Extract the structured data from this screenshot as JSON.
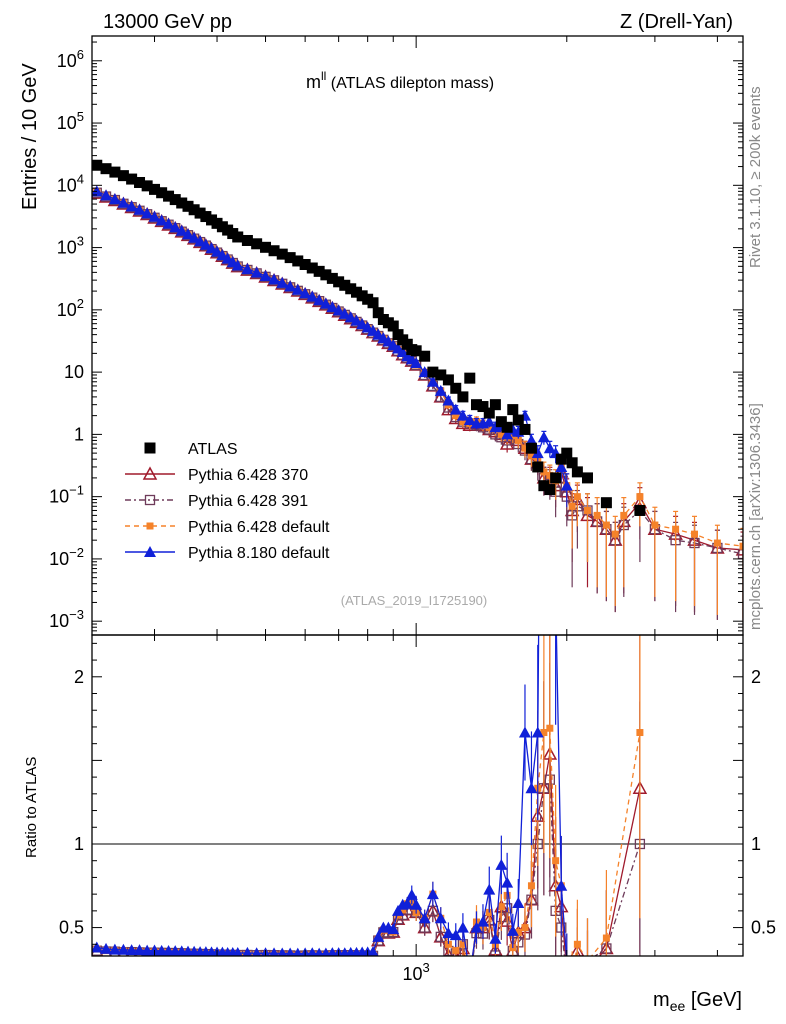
{
  "header": {
    "energy_label": "13000 GeV pp",
    "process_label": "Z (Drell-Yan)"
  },
  "title": {
    "main": "m",
    "sup": "ll",
    "suffix": " (ATLAS dilepton mass)"
  },
  "side_text": {
    "rivet": "Rivet 3.1.10, ≥ 200k events",
    "source": "mcplots.cern.ch [arXiv:1306.3436]"
  },
  "analysis_label": "(ATLAS_2019_I1725190)",
  "axis_labels": {
    "y_main": "Entries / 10 GeV",
    "y_ratio": "Ratio to ATLAS",
    "x_base": "m",
    "x_sub": "ee",
    "x_unit": " [GeV]"
  },
  "ticks": {
    "main": [
      {
        "v": 1000000.0,
        "b": "10",
        "e": "6"
      },
      {
        "v": 100000.0,
        "b": "10",
        "e": "5"
      },
      {
        "v": 10000.0,
        "b": "10",
        "e": "4"
      },
      {
        "v": 1000.0,
        "b": "10",
        "e": "3"
      },
      {
        "v": 100.0,
        "b": "10",
        "e": "2"
      },
      {
        "v": 10,
        "b": "10",
        "e": ""
      },
      {
        "v": 1,
        "b": "1",
        "e": ""
      },
      {
        "v": 0.1,
        "b": "10",
        "e": "−1"
      },
      {
        "v": 0.01,
        "b": "10",
        "e": "−2"
      },
      {
        "v": 0.001,
        "b": "10",
        "e": "−3"
      }
    ],
    "ratio": [
      {
        "v": 2,
        "t": "2"
      },
      {
        "v": 1,
        "t": "1"
      },
      {
        "v": 0.5,
        "t": "0.5"
      }
    ],
    "x": [
      {
        "v": 1000,
        "b": "10",
        "e": "3"
      }
    ]
  },
  "legend": [
    {
      "key": "atlas",
      "label": "ATLAS",
      "color": "#000000"
    },
    {
      "key": "p370",
      "label": "Pythia 6.428 370",
      "color": "#a01a2c"
    },
    {
      "key": "p391",
      "label": "Pythia 6.428 391",
      "color": "#6e3b5a"
    },
    {
      "key": "pdef",
      "label": "Pythia 6.428 default",
      "color": "#f5822a"
    },
    {
      "key": "p8",
      "label": "Pythia 8.180 default",
      "color": "#1020d8"
    }
  ],
  "chart_data": {
    "type": "line",
    "title": "m^ll (ATLAS dilepton mass)",
    "xlabel": "m_ee [GeV]",
    "ylabel": "Entries / 10 GeV",
    "xscale": "log",
    "yscale": "log",
    "xlim": [
      225,
      4500
    ],
    "ylim": [
      0.0006,
      2500000
    ],
    "ratio_ylim": [
      0.33,
      2.25
    ],
    "x": [
      230,
      240,
      250,
      260,
      270,
      280,
      290,
      300,
      310,
      320,
      330,
      340,
      350,
      360,
      370,
      380,
      390,
      400,
      410,
      420,
      430,
      440,
      460,
      480,
      500,
      520,
      540,
      560,
      580,
      600,
      620,
      640,
      660,
      680,
      700,
      720,
      740,
      760,
      780,
      800,
      820,
      840,
      860,
      880,
      900,
      920,
      940,
      960,
      980,
      1000,
      1040,
      1080,
      1120,
      1160,
      1200,
      1240,
      1280,
      1320,
      1360,
      1400,
      1440,
      1480,
      1520,
      1560,
      1600,
      1650,
      1700,
      1750,
      1800,
      1850,
      1900,
      1950,
      2000,
      2050,
      2100,
      2200,
      2300,
      2400,
      2500,
      2600,
      2800,
      3000,
      3300,
      3600,
      4000,
      4500
    ],
    "series": [
      {
        "name": "ATLAS",
        "values": [
          21000,
          18500,
          16300,
          14300,
          12600,
          11100,
          9800,
          8600,
          7600,
          6700,
          5900,
          5200,
          4600,
          4050,
          3580,
          3150,
          2780,
          2450,
          2160,
          1910,
          1680,
          1480,
          1300,
          1150,
          1010,
          890,
          785,
          690,
          610,
          535,
          470,
          415,
          365,
          320,
          282,
          248,
          218,
          192,
          168,
          148,
          130,
          90,
          70,
          62,
          55,
          40,
          33,
          28,
          23,
          22,
          18,
          10,
          9,
          7.5,
          5.5,
          4,
          8,
          3,
          2.8,
          2.2,
          3.0,
          1.6,
          1.3,
          2.5,
          1.7,
          1.2,
          0.6,
          0.3,
          0.15,
          0.13,
          0.2,
          0.4,
          0.5,
          0.35,
          0.25,
          0.2,
          null,
          0.08,
          null,
          null,
          0.06,
          null,
          null,
          null,
          null,
          null
        ]
      },
      {
        "name": "Pythia 6.428 370",
        "values": [
          7500,
          6500,
          5700,
          5000,
          4400,
          3870,
          3400,
          2990,
          2630,
          2310,
          2030,
          1790,
          1570,
          1380,
          1215,
          1070,
          940,
          825,
          725,
          640,
          562,
          494,
          435,
          383,
          337,
          296,
          260,
          229,
          201,
          177,
          156,
          137,
          120,
          106,
          93,
          82,
          72,
          63,
          56,
          49,
          43,
          38,
          33,
          29,
          26,
          22,
          19,
          17,
          15,
          13,
          9,
          6,
          4,
          2.5,
          1.8,
          1.5,
          1.4,
          1.5,
          1.4,
          1.2,
          1.1,
          1.0,
          0.7,
          0.9,
          0.8,
          0.6,
          0.4,
          0.35,
          0.2,
          0.2,
          0.15,
          0.25,
          0.12,
          0.06,
          0.09,
          0.05,
          0.04,
          0.03,
          0.02,
          0.04,
          0.08,
          0.03,
          0.025,
          0.02,
          0.015,
          0.014
        ]
      },
      {
        "name": "Pythia 6.428 391",
        "values": [
          7600,
          6600,
          5800,
          5050,
          4450,
          3900,
          3430,
          3010,
          2650,
          2330,
          2050,
          1800,
          1580,
          1390,
          1225,
          1075,
          945,
          830,
          730,
          643,
          565,
          497,
          437,
          385,
          339,
          298,
          262,
          230,
          202,
          178,
          157,
          138,
          121,
          107,
          94,
          83,
          73,
          64,
          56,
          49,
          43,
          38,
          33,
          29,
          26,
          22,
          19,
          17,
          15,
          13,
          9,
          6,
          4,
          2.7,
          1.9,
          1.6,
          1.5,
          1.4,
          1.3,
          1.2,
          1.0,
          0.9,
          0.8,
          0.9,
          0.7,
          0.55,
          0.4,
          0.3,
          0.2,
          0.18,
          0.12,
          0.2,
          0.1,
          0.05,
          0.07,
          0.06,
          0.04,
          0.03,
          0.02,
          0.035,
          0.06,
          0.03,
          0.02,
          0.018,
          0.015,
          0.012
        ]
      },
      {
        "name": "Pythia 6.428 default",
        "values": [
          7800,
          6700,
          5900,
          5150,
          4500,
          3950,
          3470,
          3050,
          2680,
          2350,
          2070,
          1820,
          1600,
          1405,
          1235,
          1085,
          955,
          840,
          737,
          648,
          570,
          501,
          441,
          388,
          341,
          300,
          264,
          232,
          204,
          180,
          158,
          139,
          122,
          108,
          95,
          83,
          73,
          64,
          57,
          50,
          44,
          39,
          34,
          30,
          26,
          23,
          20,
          18,
          15,
          13,
          10,
          7,
          5,
          3,
          2,
          1.6,
          1.5,
          1.6,
          1.4,
          1.3,
          1.2,
          1.0,
          0.9,
          0.95,
          0.8,
          0.6,
          0.45,
          0.4,
          0.25,
          0.22,
          0.18,
          0.3,
          0.15,
          0.07,
          0.1,
          0.06,
          0.05,
          0.035,
          0.025,
          0.05,
          0.1,
          0.035,
          0.03,
          0.025,
          0.018,
          0.016
        ]
      },
      {
        "name": "Pythia 8.180 default",
        "values": [
          8000,
          6900,
          6000,
          5250,
          4600,
          4050,
          3550,
          3120,
          2740,
          2410,
          2120,
          1860,
          1640,
          1440,
          1265,
          1112,
          978,
          860,
          756,
          665,
          585,
          515,
          453,
          398,
          350,
          308,
          271,
          238,
          210,
          185,
          163,
          143,
          126,
          111,
          98,
          86,
          76,
          67,
          59,
          52,
          46,
          40,
          35,
          31,
          27,
          24,
          21,
          18,
          16,
          14,
          10,
          7,
          5,
          3.5,
          2.5,
          2,
          1.7,
          1.5,
          1.5,
          1.6,
          1.3,
          1.4,
          1.0,
          1.2,
          1.1,
          2.0,
          0.8,
          0.5,
          0.9,
          0.6,
          0.5,
          0.3,
          0.15,
          null,
          null,
          null,
          null,
          null,
          null,
          null,
          null,
          null,
          null,
          null,
          null,
          null
        ]
      }
    ]
  }
}
